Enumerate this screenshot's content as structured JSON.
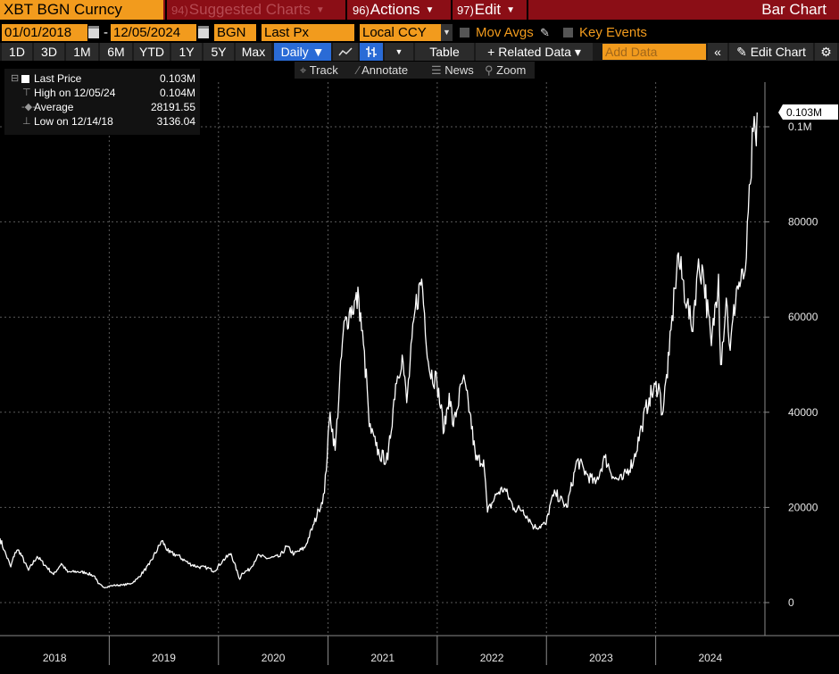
{
  "header": {
    "ticker": "XBT BGN Curncy",
    "menus": [
      {
        "num": "94)",
        "label": "Suggested Charts",
        "dim": true
      },
      {
        "num": "96)",
        "label": "Actions",
        "dim": false
      },
      {
        "num": "97)",
        "label": "Edit",
        "dim": false
      }
    ],
    "view_title": "Bar Chart"
  },
  "controls": {
    "start_date": "01/01/2018",
    "dash": "-",
    "end_date": "12/05/2024",
    "source": "BGN",
    "field": "Last Px",
    "currency": "Local CCY",
    "mov_avgs": "Mov Avgs",
    "key_events": "Key Events"
  },
  "toolbar": {
    "periods": [
      "1D",
      "3D",
      "1M",
      "6M",
      "YTD",
      "1Y",
      "5Y",
      "Max"
    ],
    "frequency": "Daily ▼",
    "table": "Table",
    "related_data": "+ Related Data ▾",
    "add_data_placeholder": "Add Data",
    "edit_chart": "Edit Chart"
  },
  "tools": {
    "track": "Track",
    "annotate": "Annotate",
    "news": "News",
    "zoom": "Zoom"
  },
  "legend": {
    "rows": [
      {
        "label": "Last Price",
        "value": "0.103M"
      },
      {
        "label": "High on 12/05/24",
        "value": "0.104M"
      },
      {
        "label": "Average",
        "value": "28191.55"
      },
      {
        "label": "Low on 12/14/18",
        "value": "3136.04"
      }
    ]
  },
  "chart_data": {
    "type": "line",
    "title": "",
    "series_name": "Last Price",
    "last_price_label": "0.103M",
    "ylim": [
      -5000,
      110000
    ],
    "y_ticks": [
      0,
      20000,
      40000,
      60000,
      80000,
      100000
    ],
    "y_tick_labels": [
      "0",
      "20000",
      "40000",
      "60000",
      "80000",
      "0.1M"
    ],
    "x_tick_labels": [
      "2018",
      "2019",
      "2020",
      "2021",
      "2022",
      "2023",
      "2024"
    ],
    "grid": true,
    "series": [
      {
        "name": "Last Price",
        "x": [
          "2018-01-01",
          "2018-01-15",
          "2018-02-06",
          "2018-02-20",
          "2018-03-05",
          "2018-04-06",
          "2018-05-05",
          "2018-06-29",
          "2018-07-25",
          "2018-08-15",
          "2018-09-15",
          "2018-10-15",
          "2018-11-14",
          "2018-11-25",
          "2018-12-14",
          "2019-01-15",
          "2019-02-15",
          "2019-03-15",
          "2019-04-05",
          "2019-05-15",
          "2019-06-26",
          "2019-07-20",
          "2019-08-15",
          "2019-09-25",
          "2019-10-25",
          "2019-11-25",
          "2019-12-18",
          "2020-01-15",
          "2020-02-12",
          "2020-03-12",
          "2020-03-20",
          "2020-04-15",
          "2020-05-10",
          "2020-06-15",
          "2020-07-25",
          "2020-08-15",
          "2020-09-10",
          "2020-10-15",
          "2020-11-15",
          "2020-12-01",
          "2020-12-20",
          "2021-01-08",
          "2021-01-25",
          "2021-02-21",
          "2021-03-13",
          "2021-04-14",
          "2021-05-12",
          "2021-05-19",
          "2021-06-10",
          "2021-06-22",
          "2021-07-20",
          "2021-08-15",
          "2021-09-06",
          "2021-09-21",
          "2021-10-20",
          "2021-11-10",
          "2021-12-05",
          "2021-12-31",
          "2022-01-24",
          "2022-02-10",
          "2022-02-24",
          "2022-03-28",
          "2022-04-20",
          "2022-05-10",
          "2022-06-05",
          "2022-06-18",
          "2022-07-20",
          "2022-08-13",
          "2022-09-15",
          "2022-10-15",
          "2022-11-09",
          "2022-11-21",
          "2022-12-31",
          "2023-01-15",
          "2023-01-31",
          "2023-03-10",
          "2023-04-14",
          "2023-05-15",
          "2023-06-14",
          "2023-07-15",
          "2023-08-17",
          "2023-09-11",
          "2023-10-20",
          "2023-11-15",
          "2023-12-10",
          "2024-01-11",
          "2024-01-23",
          "2024-02-15",
          "2024-03-05",
          "2024-03-14",
          "2024-04-15",
          "2024-05-01",
          "2024-05-20",
          "2024-06-07",
          "2024-07-05",
          "2024-07-29",
          "2024-08-05",
          "2024-08-24",
          "2024-09-06",
          "2024-09-27",
          "2024-10-20",
          "2024-10-30",
          "2024-11-12",
          "2024-11-22",
          "2024-12-02",
          "2024-12-05"
        ],
        "values": [
          13500,
          11000,
          7500,
          10500,
          11000,
          6800,
          9700,
          5900,
          8200,
          6400,
          6500,
          6300,
          5500,
          4000,
          3200,
          3600,
          3700,
          4000,
          5000,
          8000,
          13000,
          10500,
          10000,
          8200,
          7500,
          7300,
          6600,
          8800,
          10300,
          4900,
          6200,
          7000,
          9800,
          9300,
          9700,
          11800,
          10200,
          11500,
          16500,
          19500,
          23000,
          40000,
          32000,
          57000,
          61000,
          64000,
          45000,
          37000,
          33000,
          31000,
          30000,
          46000,
          52000,
          42000,
          62000,
          68000,
          49000,
          46500,
          36000,
          44000,
          37000,
          47000,
          40000,
          30000,
          30000,
          19000,
          23000,
          24000,
          19800,
          19500,
          17000,
          15800,
          16500,
          21000,
          23000,
          20000,
          30000,
          27000,
          25000,
          30500,
          26000,
          25800,
          30000,
          37000,
          43000,
          46000,
          39500,
          52000,
          66000,
          73000,
          63000,
          57000,
          70000,
          70000,
          54000,
          69000,
          50000,
          64000,
          53000,
          66000,
          68000,
          72500,
          88000,
          99000,
          96000,
          103000
        ]
      }
    ]
  }
}
